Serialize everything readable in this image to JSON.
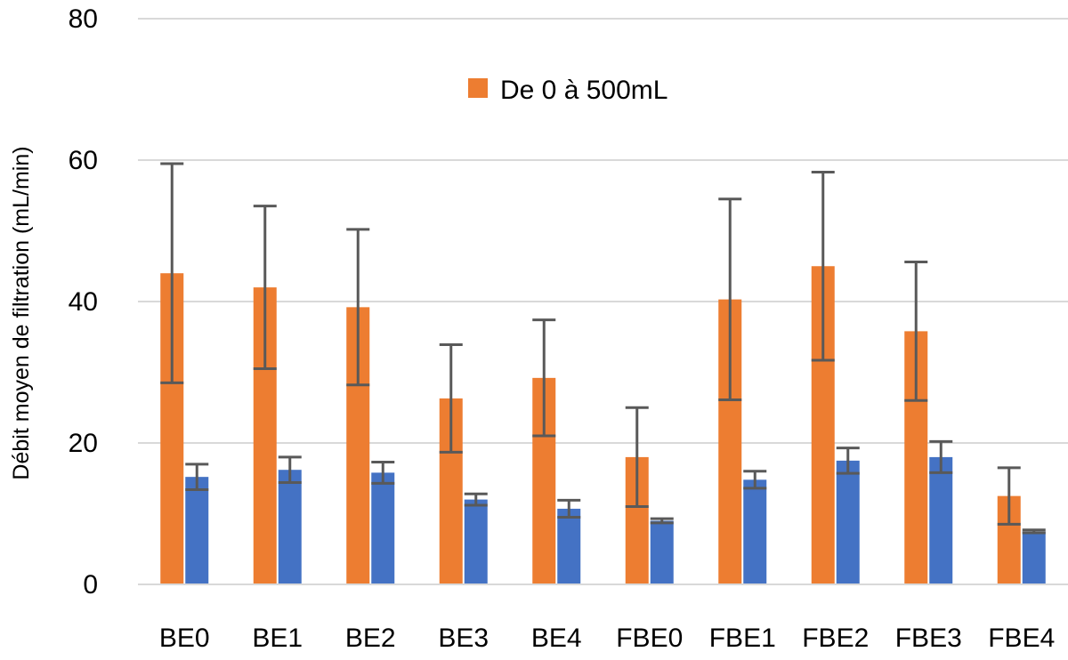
{
  "chart_data": {
    "type": "bar",
    "title": "",
    "xlabel": "",
    "ylabel": "Débit moyen de filtration  (mL/min)",
    "ylim": [
      0,
      80
    ],
    "yticks": [
      0,
      20,
      40,
      60,
      80
    ],
    "grid": true,
    "categories": [
      "BE0",
      "BE1",
      "BE2",
      "BE3",
      "BE4",
      "FBE0",
      "FBE1",
      "FBE2",
      "FBE3",
      "FBE4"
    ],
    "legend": {
      "position": "top-center",
      "label": "De 0 à 500mL"
    },
    "series": [
      {
        "name": "De 0 à 500mL",
        "color": "#ED7D31",
        "values": [
          44,
          42,
          39.2,
          26.3,
          29.2,
          18,
          40.3,
          45,
          35.8,
          12.5
        ],
        "error": [
          15.5,
          11.5,
          11,
          7.6,
          8.2,
          7,
          14.2,
          13.3,
          9.8,
          4
        ]
      },
      {
        "name": "",
        "color": "#4472C4",
        "values": [
          15.2,
          16.2,
          15.8,
          12,
          10.7,
          9,
          14.8,
          17.5,
          18,
          7.5
        ],
        "error": [
          1.8,
          1.8,
          1.5,
          0.8,
          1.2,
          0.3,
          1.2,
          1.8,
          2.2,
          0.2
        ]
      }
    ],
    "error_bar_color": "#595959"
  }
}
